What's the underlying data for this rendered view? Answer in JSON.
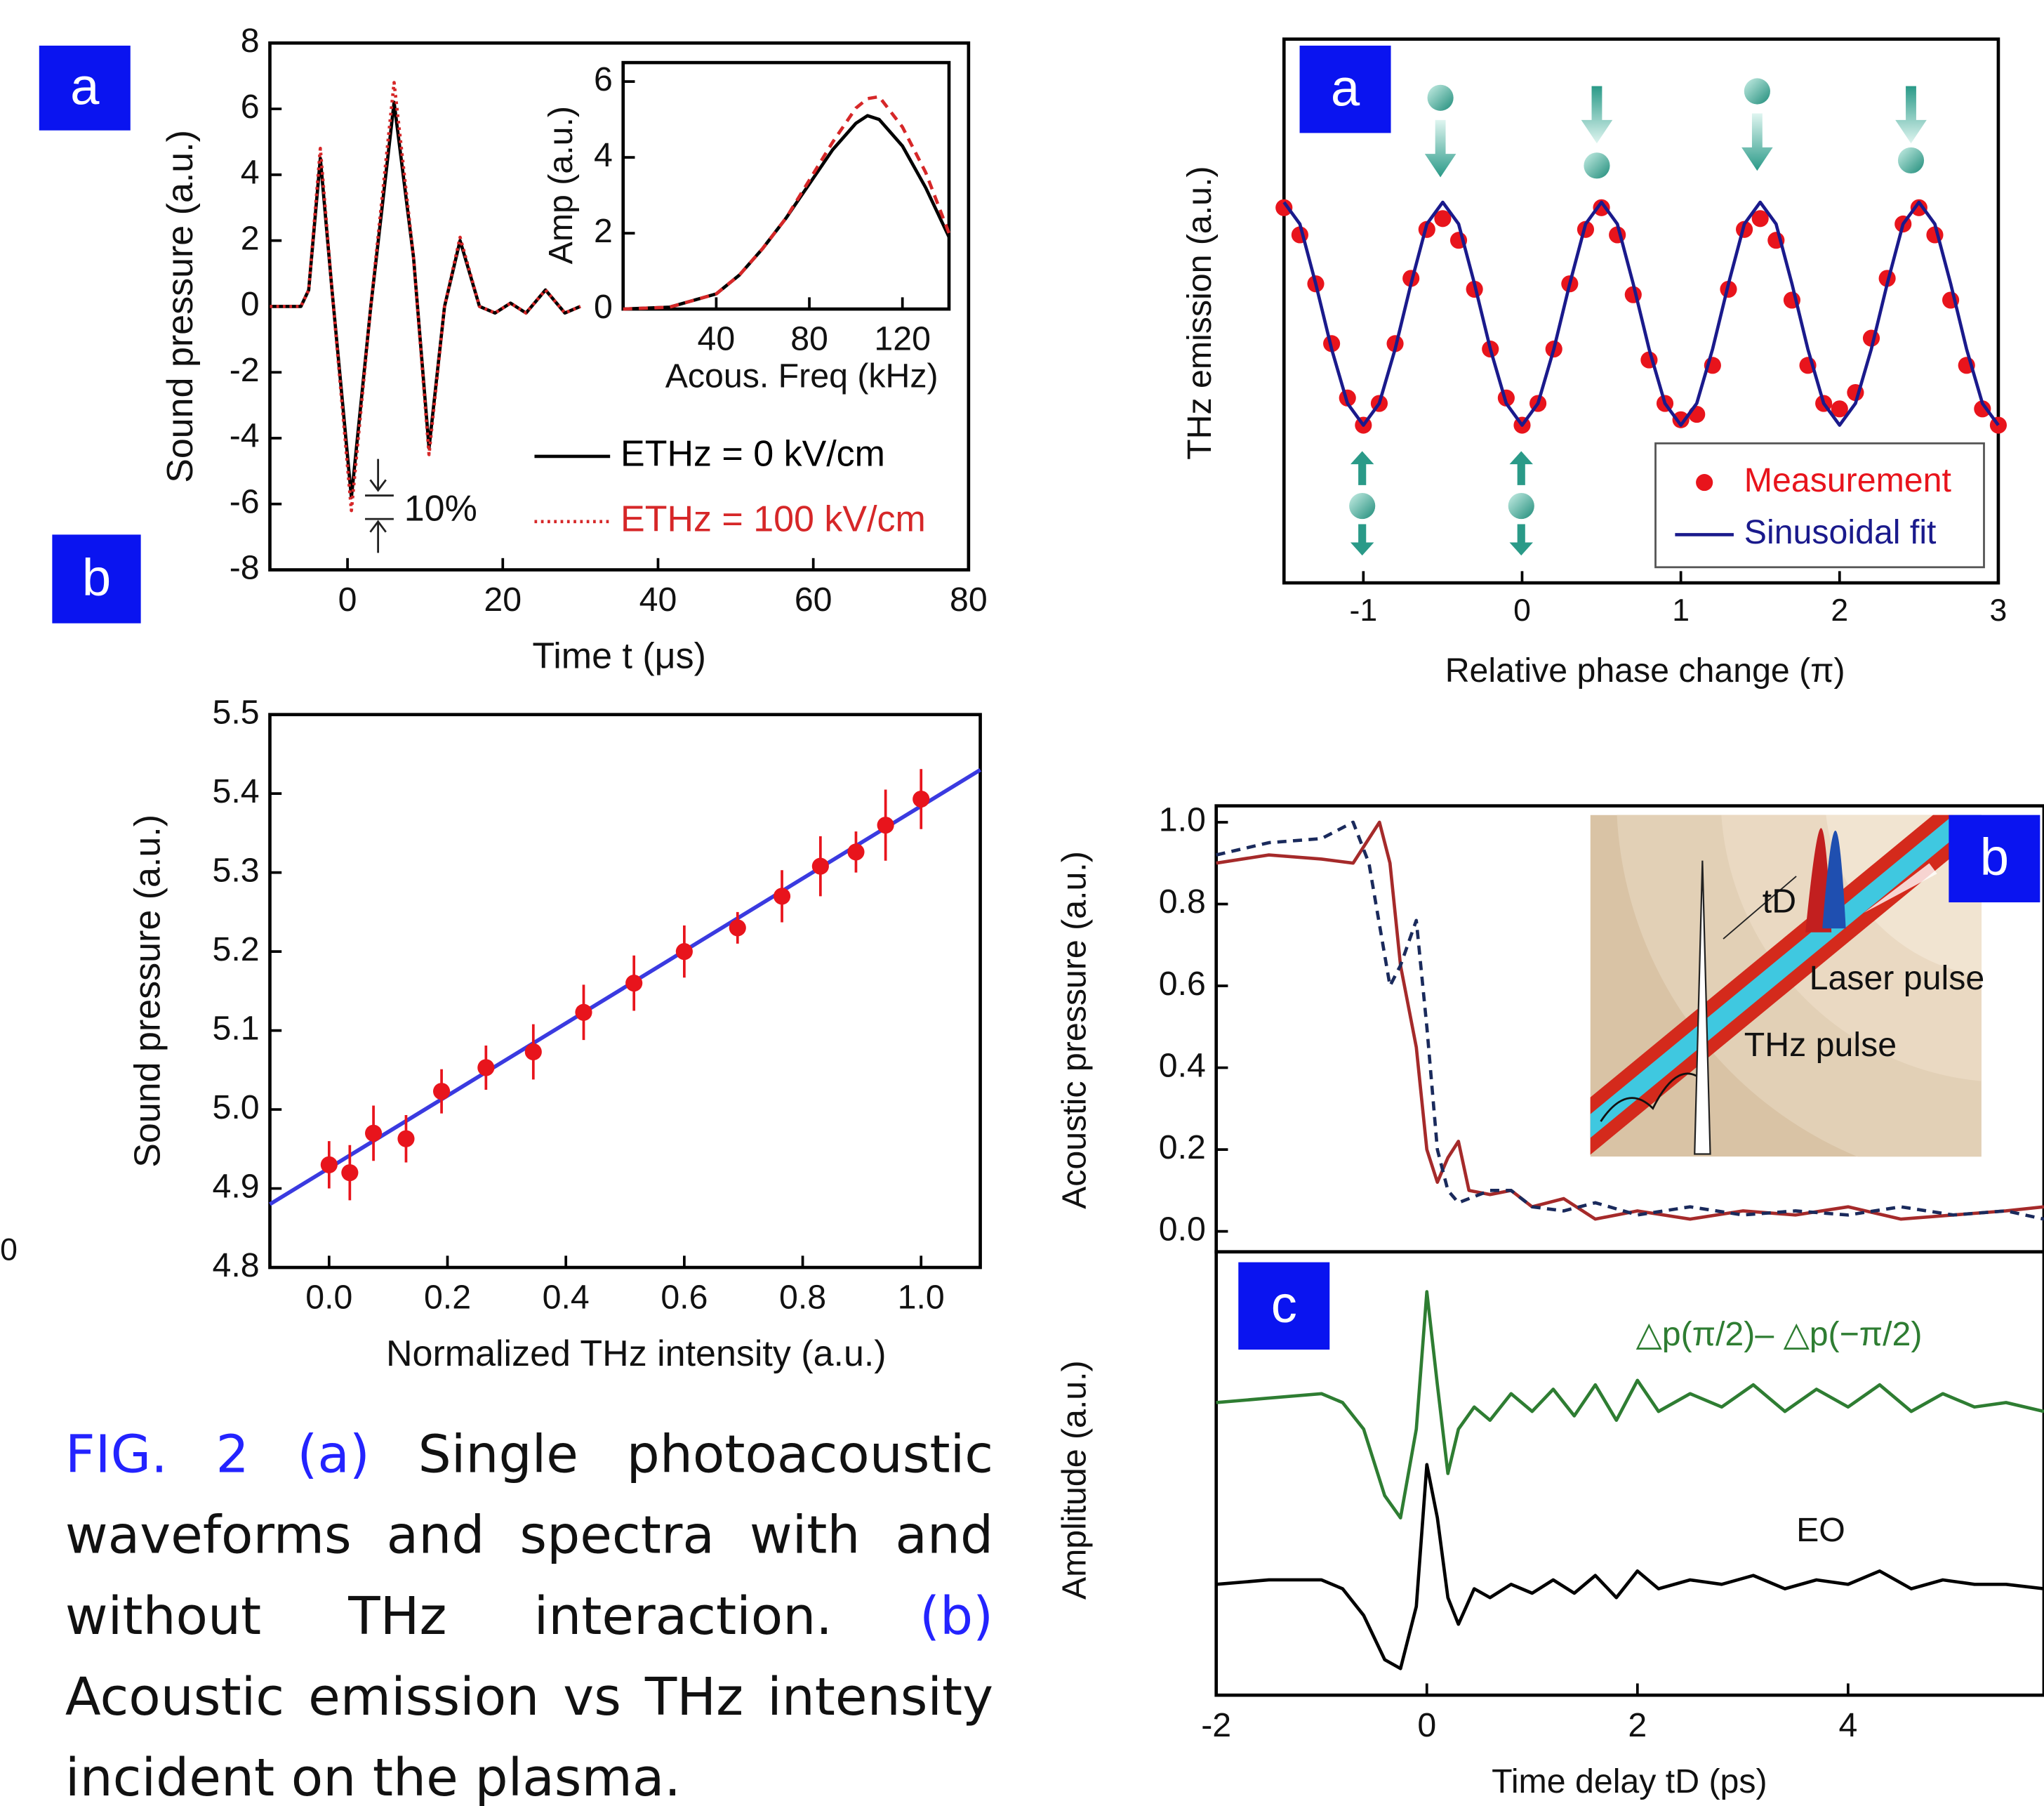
{
  "chart_data": [
    {
      "type": "line",
      "panel": "a",
      "xlabel": "Time t (μs)",
      "ylabel": "Sound pressure (a.u.)",
      "xlim": [
        -10,
        80
      ],
      "xticks": [
        0,
        20,
        40,
        60,
        80
      ],
      "ylim": [
        -8,
        8
      ],
      "yticks": [
        -8,
        -6,
        -4,
        -2,
        0,
        2,
        4,
        6,
        8
      ],
      "x": [
        -10,
        -6,
        -5,
        -3.5,
        -2,
        0.5,
        3,
        6,
        8.5,
        10.5,
        12.5,
        14.5,
        17,
        19,
        21,
        23,
        25.5,
        28,
        30
      ],
      "series": [
        {
          "name": "ETHz = 0 kV/cm",
          "color": "#000000",
          "linestyle": "solid",
          "values": [
            0,
            0,
            0.5,
            4.5,
            0.5,
            -5.8,
            0,
            6.2,
            1.5,
            -4.3,
            0,
            2,
            0,
            -0.2,
            0.1,
            -0.2,
            0.5,
            -0.2,
            0
          ]
        },
        {
          "name": "ETHz = 100 kV/cm",
          "color": "#d62728",
          "linestyle": "dotted",
          "values": [
            0,
            0,
            0.5,
            4.8,
            0.5,
            -6.2,
            0,
            6.8,
            1.5,
            -4.5,
            0,
            2.1,
            0,
            -0.2,
            0.1,
            -0.2,
            0.5,
            -0.2,
            0
          ]
        }
      ],
      "annotations": [
        "10%"
      ]
    },
    {
      "type": "line",
      "xlabel": "Acous. Freq (kHz)",
      "ylabel": "Amp (a.u.)",
      "xlim": [
        0,
        140
      ],
      "xticks": [
        40,
        80,
        120
      ],
      "ylim": [
        0,
        6.5
      ],
      "yticks": [
        0,
        2,
        4,
        6
      ],
      "x": [
        0,
        20,
        40,
        50,
        60,
        70,
        80,
        90,
        100,
        105,
        110,
        120,
        130,
        140
      ],
      "series": [
        {
          "color": "#000000",
          "linestyle": "solid",
          "values": [
            0,
            0.05,
            0.4,
            0.9,
            1.6,
            2.4,
            3.3,
            4.2,
            4.9,
            5.1,
            5.0,
            4.3,
            3.2,
            1.9
          ]
        },
        {
          "color": "#d62728",
          "linestyle": "dashed",
          "values": [
            0,
            0.05,
            0.4,
            0.9,
            1.6,
            2.4,
            3.4,
            4.4,
            5.3,
            5.55,
            5.6,
            4.8,
            3.6,
            2.0
          ]
        }
      ]
    },
    {
      "type": "scatter",
      "panel": "b",
      "xlabel": "Normalized THz intensity (a.u.)",
      "ylabel": "Sound pressure (a.u.)",
      "xlim": [
        -0.1,
        1.1
      ],
      "xticks": [
        {
          "value": 0,
          "label": "0.0"
        },
        0.2,
        0.4,
        0.6,
        0.8,
        {
          "value": 1,
          "label": "1.0"
        }
      ],
      "ylim": [
        4.8,
        5.5
      ],
      "yticks": [
        4.8,
        4.9,
        {
          "value": 5,
          "label": "5.0"
        },
        5.1,
        5.2,
        5.3,
        5.4,
        5.5
      ],
      "x": [
        0,
        0.035,
        0.075,
        0.13,
        0.19,
        0.265,
        0.345,
        0.43,
        0.515,
        0.6,
        0.69,
        0.765,
        0.83,
        0.89,
        0.94,
        1.0
      ],
      "series": [
        {
          "color": "#e8141c",
          "marker": true,
          "values": [
            4.93,
            4.92,
            4.97,
            4.963,
            5.023,
            5.053,
            5.073,
            5.123,
            5.16,
            5.2,
            5.23,
            5.27,
            5.308,
            5.326,
            5.36,
            5.393
          ],
          "errors": [
            0.03,
            0.035,
            0.035,
            0.03,
            0.028,
            0.028,
            0.035,
            0.035,
            0.035,
            0.033,
            0.02,
            0.033,
            0.038,
            0.026,
            0.045,
            0.038
          ]
        }
      ],
      "fit": {
        "color": "#3a3ae0",
        "x": [
          -0.1,
          1.1
        ],
        "values": [
          4.88,
          5.43
        ]
      }
    },
    {
      "type": "scatter",
      "panel": "a",
      "xlabel": "Relative phase change (π)",
      "ylabel": "THz emission (a.u.)",
      "xlim": [
        -1.5,
        3
      ],
      "xticks": [
        -1,
        0,
        1,
        2,
        3
      ],
      "ylim": [
        0,
        1
      ],
      "x": [
        -1.5,
        -1.4,
        -1.3,
        -1.2,
        -1.1,
        -1.0,
        -0.9,
        -0.8,
        -0.7,
        -0.6,
        -0.5,
        -0.4,
        -0.3,
        -0.2,
        -0.1,
        0,
        0.1,
        0.2,
        0.3,
        0.4,
        0.5,
        0.6,
        0.7,
        0.8,
        0.9,
        1.0,
        1.1,
        1.2,
        1.3,
        1.4,
        1.5,
        1.6,
        1.7,
        1.8,
        1.9,
        2.0,
        2.1,
        2.2,
        2.3,
        2.4,
        2.5,
        2.6,
        2.7,
        2.8,
        2.9,
        3.0
      ],
      "series": [
        {
          "name": "Measurement",
          "color": "#e8141c",
          "marker": true,
          "values": [
            0.69,
            0.64,
            0.55,
            0.44,
            0.34,
            0.29,
            0.33,
            0.44,
            0.56,
            0.65,
            0.67,
            0.63,
            0.54,
            0.43,
            0.34,
            0.29,
            0.33,
            0.43,
            0.55,
            0.65,
            0.69,
            0.64,
            0.53,
            0.41,
            0.33,
            0.3,
            0.31,
            0.4,
            0.54,
            0.65,
            0.67,
            0.63,
            0.52,
            0.4,
            0.33,
            0.32,
            0.35,
            0.45,
            0.56,
            0.66,
            0.69,
            0.64,
            0.52,
            0.4,
            0.32,
            0.29
          ]
        },
        {
          "name": "Sinusoidal fit",
          "color": "#1a1a8c",
          "linestyle": "solid",
          "values": [
            0.7,
            0.66,
            0.55,
            0.43,
            0.33,
            0.29,
            0.33,
            0.43,
            0.55,
            0.66,
            0.7,
            0.66,
            0.55,
            0.43,
            0.33,
            0.29,
            0.33,
            0.43,
            0.55,
            0.66,
            0.7,
            0.66,
            0.55,
            0.43,
            0.33,
            0.29,
            0.33,
            0.43,
            0.55,
            0.66,
            0.7,
            0.66,
            0.55,
            0.43,
            0.33,
            0.29,
            0.33,
            0.43,
            0.55,
            0.66,
            0.7,
            0.66,
            0.55,
            0.43,
            0.33,
            0.29
          ]
        }
      ]
    },
    {
      "type": "line",
      "panel": "b",
      "ylabel": "Acoustic pressure (a.u.)",
      "xlim": [
        -2,
        5.86
      ],
      "ylim": [
        -0.05,
        1.04
      ],
      "yticks": [
        {
          "value": 0,
          "label": "0.0"
        },
        0.2,
        0.4,
        0.6,
        0.8,
        {
          "value": 1,
          "label": "1.0"
        }
      ],
      "x": [
        -2,
        -1.5,
        -1,
        -0.7,
        -0.55,
        -0.45,
        -0.35,
        -0.25,
        -0.1,
        0,
        0.1,
        0.2,
        0.3,
        0.4,
        0.6,
        0.8,
        1,
        1.3,
        1.6,
        2,
        2.5,
        3,
        3.5,
        4,
        4.5,
        5,
        5.5,
        5.86
      ],
      "series": [
        {
          "color": "#a52a2a",
          "linestyle": "solid",
          "values": [
            0.9,
            0.92,
            0.91,
            0.9,
            0.96,
            1.0,
            0.9,
            0.65,
            0.45,
            0.2,
            0.12,
            0.18,
            0.22,
            0.1,
            0.09,
            0.1,
            0.06,
            0.08,
            0.03,
            0.05,
            0.03,
            0.05,
            0.04,
            0.06,
            0.03,
            0.04,
            0.05,
            0.06
          ]
        },
        {
          "color": "#1a2a5c",
          "linestyle": "dashed",
          "values": [
            0.92,
            0.95,
            0.96,
            1.0,
            0.9,
            0.75,
            0.6,
            0.65,
            0.76,
            0.5,
            0.2,
            0.1,
            0.07,
            0.08,
            0.1,
            0.1,
            0.06,
            0.05,
            0.07,
            0.04,
            0.06,
            0.04,
            0.05,
            0.04,
            0.06,
            0.04,
            0.05,
            0.03
          ]
        }
      ],
      "annotations": [
        "tD",
        "Laser pulse",
        "THz pulse"
      ]
    },
    {
      "type": "line",
      "panel": "c",
      "xlabel": "Time delay tD (ps)",
      "ylabel": "Amplitude (a.u.)",
      "xlim": [
        -2,
        5.86
      ],
      "xticks": [
        -2,
        0,
        2,
        4
      ],
      "ylim": [
        0,
        1
      ],
      "x": [
        -2,
        -1.5,
        -1,
        -0.8,
        -0.6,
        -0.4,
        -0.25,
        -0.1,
        0,
        0.1,
        0.2,
        0.3,
        0.45,
        0.6,
        0.8,
        1,
        1.2,
        1.4,
        1.6,
        1.8,
        2,
        2.2,
        2.5,
        2.8,
        3.1,
        3.4,
        3.7,
        4,
        4.3,
        4.6,
        4.9,
        5.2,
        5.5,
        5.86
      ],
      "series": [
        {
          "color": "#2e7d32",
          "linestyle": "solid",
          "values": [
            0.66,
            0.67,
            0.68,
            0.66,
            0.6,
            0.45,
            0.4,
            0.6,
            0.91,
            0.7,
            0.5,
            0.6,
            0.65,
            0.62,
            0.68,
            0.64,
            0.69,
            0.63,
            0.7,
            0.62,
            0.71,
            0.64,
            0.68,
            0.65,
            0.7,
            0.64,
            0.69,
            0.65,
            0.7,
            0.64,
            0.68,
            0.65,
            0.66,
            0.64
          ]
        },
        {
          "color": "#000000",
          "linestyle": "solid",
          "values": [
            0.25,
            0.26,
            0.26,
            0.24,
            0.18,
            0.08,
            0.06,
            0.2,
            0.52,
            0.4,
            0.22,
            0.16,
            0.24,
            0.22,
            0.25,
            0.23,
            0.26,
            0.23,
            0.27,
            0.22,
            0.28,
            0.24,
            0.26,
            0.25,
            0.27,
            0.24,
            0.26,
            0.25,
            0.28,
            0.24,
            0.26,
            0.25,
            0.25,
            0.24
          ]
        }
      ],
      "annotations": [
        "△p(π/2)– △p(−π/2)",
        "EO"
      ]
    }
  ],
  "caption": [
    {
      "text": "FIG. 2 (a)",
      "color": "#2323ff"
    },
    {
      "text": "Single photoacoustic waveforms and spectra with and without THz interaction.",
      "color": "#111111"
    },
    {
      "text": "(b)",
      "color": "#2323ff"
    },
    {
      "text": "Acoustic emission vs THz intensity incident on the plasma.",
      "color": "#111111"
    }
  ],
  "edge_text": "0"
}
